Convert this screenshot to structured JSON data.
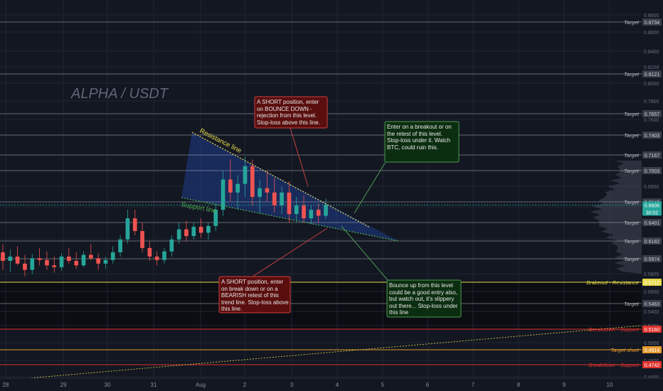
{
  "chart_data": {
    "type": "candlestick",
    "title": "ALPHA / USDT",
    "ylim": [
      0.46,
      0.885
    ],
    "x_ticks": [
      "28",
      "29",
      "30",
      "31",
      "Aug",
      "2",
      "3",
      "4",
      "5",
      "6",
      "7",
      "8",
      "9",
      "10"
    ],
    "y_ticks": [
      "0.8800",
      "0.8600",
      "0.8400",
      "0.8200",
      "0.8000",
      "0.7800",
      "0.7600",
      "0.6800",
      "0.6600",
      "0.6200",
      "0.5800",
      "0.5600",
      "0.5400",
      "0.5200",
      "0.5000",
      "0.4800",
      "0.4600"
    ],
    "price_levels": [
      {
        "label": "Target",
        "value": 0.8734,
        "color": "#b2b5be"
      },
      {
        "label": "Target",
        "value": 0.8121,
        "color": "#b2b5be"
      },
      {
        "label": "Target",
        "value": 0.7657,
        "color": "#b2b5be"
      },
      {
        "label": "Target",
        "value": 0.7403,
        "color": "#b2b5be"
      },
      {
        "label": "Target",
        "value": 0.7167,
        "color": "#b2b5be"
      },
      {
        "label": "Target",
        "value": 0.7003,
        "color": "#b2b5be"
      },
      {
        "label": "Target",
        "value": 0.6642,
        "color": "#b2b5be"
      },
      {
        "label": "Target",
        "value": 0.6401,
        "color": "#b2b5be"
      },
      {
        "label": "Target",
        "value": 0.6182,
        "color": "#b2b5be"
      },
      {
        "label": "Target",
        "value": 0.5974,
        "color": "#b2b5be"
      },
      {
        "label": "Brakeout - Resistance",
        "value": 0.5712,
        "color": "#e6d94a"
      },
      {
        "label": "Target",
        "value": 0.5463,
        "color": "#b2b5be"
      },
      {
        "label": "Breakdown - Support",
        "value": 0.516,
        "color": "#e0332e"
      },
      {
        "label": "Target short",
        "value": 0.4914,
        "color": "#e59a2f"
      },
      {
        "label": "Breakdown - Support",
        "value": 0.4742,
        "color": "#e0332e"
      }
    ],
    "current_price": {
      "value": "0.6606",
      "countdown": "30:02",
      "color": "#26a69a"
    },
    "trendlines": [
      {
        "label": "Resistance line",
        "color": "#e6d94a"
      },
      {
        "label": "Support line",
        "color": "#4caf50"
      }
    ],
    "ohlc": [
      [
        0.605,
        0.615,
        0.585,
        0.595
      ],
      [
        0.595,
        0.608,
        0.583,
        0.6
      ],
      [
        0.6,
        0.612,
        0.59,
        0.592
      ],
      [
        0.592,
        0.602,
        0.578,
        0.585
      ],
      [
        0.585,
        0.603,
        0.58,
        0.598
      ],
      [
        0.598,
        0.61,
        0.59,
        0.596
      ],
      [
        0.596,
        0.606,
        0.585,
        0.59
      ],
      [
        0.59,
        0.6,
        0.582,
        0.588
      ],
      [
        0.588,
        0.604,
        0.584,
        0.6
      ],
      [
        0.6,
        0.61,
        0.592,
        0.595
      ],
      [
        0.595,
        0.605,
        0.586,
        0.59
      ],
      [
        0.59,
        0.606,
        0.588,
        0.602
      ],
      [
        0.602,
        0.615,
        0.596,
        0.598
      ],
      [
        0.598,
        0.604,
        0.585,
        0.592
      ],
      [
        0.592,
        0.6,
        0.586,
        0.596
      ],
      [
        0.596,
        0.612,
        0.592,
        0.605
      ],
      [
        0.605,
        0.625,
        0.6,
        0.62
      ],
      [
        0.62,
        0.655,
        0.615,
        0.645
      ],
      [
        0.645,
        0.655,
        0.625,
        0.63
      ],
      [
        0.63,
        0.64,
        0.605,
        0.61
      ],
      [
        0.61,
        0.618,
        0.595,
        0.6
      ],
      [
        0.6,
        0.606,
        0.59,
        0.596
      ],
      [
        0.596,
        0.61,
        0.592,
        0.606
      ],
      [
        0.606,
        0.625,
        0.6,
        0.62
      ],
      [
        0.62,
        0.64,
        0.615,
        0.632
      ],
      [
        0.632,
        0.642,
        0.618,
        0.624
      ],
      [
        0.624,
        0.64,
        0.62,
        0.635
      ],
      [
        0.635,
        0.645,
        0.622,
        0.628
      ],
      [
        0.628,
        0.64,
        0.62,
        0.636
      ],
      [
        0.636,
        0.662,
        0.63,
        0.655
      ],
      [
        0.655,
        0.7,
        0.648,
        0.69
      ],
      [
        0.69,
        0.712,
        0.665,
        0.675
      ],
      [
        0.675,
        0.695,
        0.655,
        0.685
      ],
      [
        0.685,
        0.715,
        0.67,
        0.705
      ],
      [
        0.705,
        0.712,
        0.66,
        0.67
      ],
      [
        0.67,
        0.69,
        0.65,
        0.68
      ],
      [
        0.68,
        0.7,
        0.665,
        0.675
      ],
      [
        0.675,
        0.692,
        0.652,
        0.66
      ],
      [
        0.66,
        0.682,
        0.65,
        0.675
      ],
      [
        0.675,
        0.688,
        0.64,
        0.65
      ],
      [
        0.65,
        0.67,
        0.64,
        0.66
      ],
      [
        0.66,
        0.672,
        0.64,
        0.645
      ],
      [
        0.645,
        0.66,
        0.638,
        0.655
      ],
      [
        0.655,
        0.662,
        0.64,
        0.648
      ],
      [
        0.648,
        0.668,
        0.644,
        0.661
      ]
    ]
  },
  "annotations": {
    "short_bounce": "A SHORT position, enter on BOUNCE DOWN - rejection from this level. Stop-loss above this line.",
    "long_breakout": "Enter on a breakout or on the retest of this level. Stop-loss under it. Watch BTC, could ruin this.",
    "short_breakdown": "A SHORT position, enter on break down or on a BEARISH retest of this trend line. Stop-loss above this line.",
    "long_bounce": "Bounce up from this level could be a good entry also, but watch out, it's slippery out there... Stop-loss under this line"
  },
  "colors": {
    "background": "#131722",
    "grid": "#1f2433",
    "up": "#26a69a",
    "down": "#ef5350",
    "wedge_fill": "#1f3d8a"
  }
}
